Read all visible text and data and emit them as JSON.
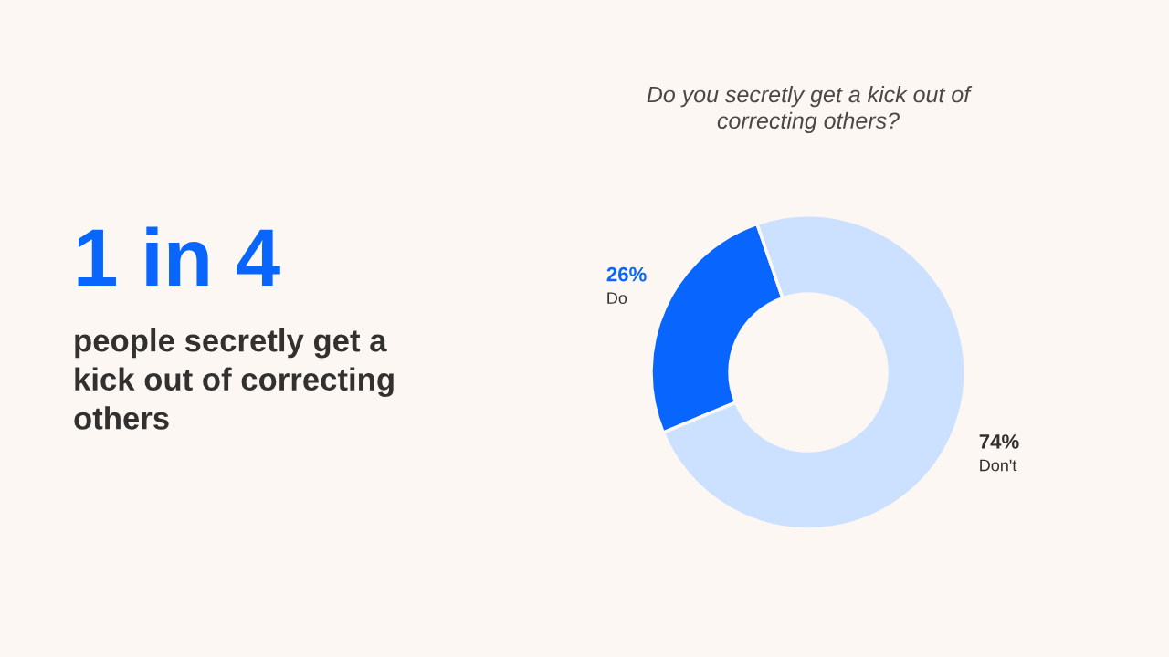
{
  "chart_data": {
    "type": "donut",
    "title": "Do you secretly get a kick out of correcting others?",
    "categories": [
      "Do",
      "Don't"
    ],
    "values": [
      26,
      74
    ],
    "colors": [
      "#0866ff",
      "#cce0ff"
    ],
    "value_labels": [
      "26%",
      "74%"
    ],
    "legend": false,
    "annotations": [
      "1 in 4",
      "people secretly get a kick out of correcting others"
    ]
  }
}
